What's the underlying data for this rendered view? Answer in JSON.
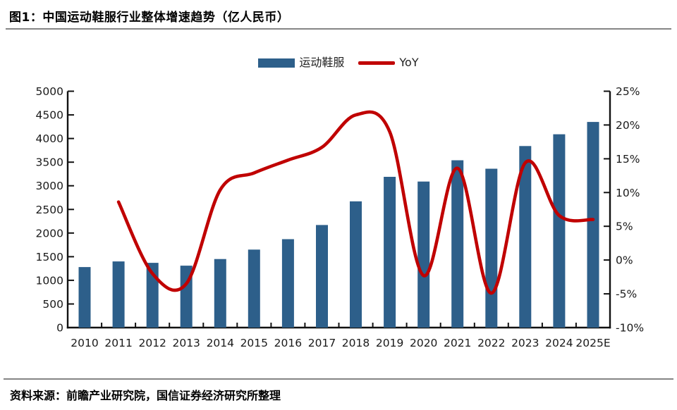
{
  "title": "图1：中国运动鞋服行业整体增速趋势（亿人民币）",
  "source": "资料来源：前瞻产业研究院，国信证券经济研究所整理",
  "colors": {
    "bar": "#2D5F8A",
    "line": "#C00000",
    "axis": "#111111",
    "text": "#1a1a1a",
    "divider": "#858585"
  },
  "chart_data": {
    "type": "bar+line",
    "categories": [
      "2010",
      "2011",
      "2012",
      "2013",
      "2014",
      "2015",
      "2016",
      "2017",
      "2018",
      "2019",
      "2020",
      "2021",
      "2022",
      "2023",
      "2024",
      "2025E"
    ],
    "series": [
      {
        "name": "运动鞋服",
        "type": "bar",
        "axis": "left",
        "color": "#2D5F8A",
        "values": [
          1280,
          1400,
          1370,
          1310,
          1450,
          1650,
          1870,
          2170,
          2670,
          3190,
          3090,
          3540,
          3360,
          3840,
          4090,
          4350
        ]
      },
      {
        "name": "YoY",
        "type": "line",
        "axis": "right",
        "color": "#C00000",
        "values": [
          null,
          8.6,
          -2.0,
          -3.5,
          10.4,
          12.9,
          14.8,
          16.7,
          21.5,
          19.0,
          -2.3,
          13.6,
          -4.9,
          14.4,
          6.6,
          6.0
        ]
      }
    ],
    "left_axis": {
      "min": 0,
      "max": 5000,
      "step": 500,
      "tick_labels": [
        "5000",
        "4500",
        "4000",
        "3500",
        "3000",
        "2500",
        "2000",
        "1500",
        "1000",
        "500",
        "0"
      ]
    },
    "right_axis": {
      "min": -10,
      "max": 25,
      "step": 5,
      "tick_labels": [
        "25%",
        "20%",
        "15%",
        "10%",
        "5%",
        "0%",
        "-5%",
        "-10%"
      ]
    },
    "grid": false,
    "legend_position": "top-center"
  }
}
